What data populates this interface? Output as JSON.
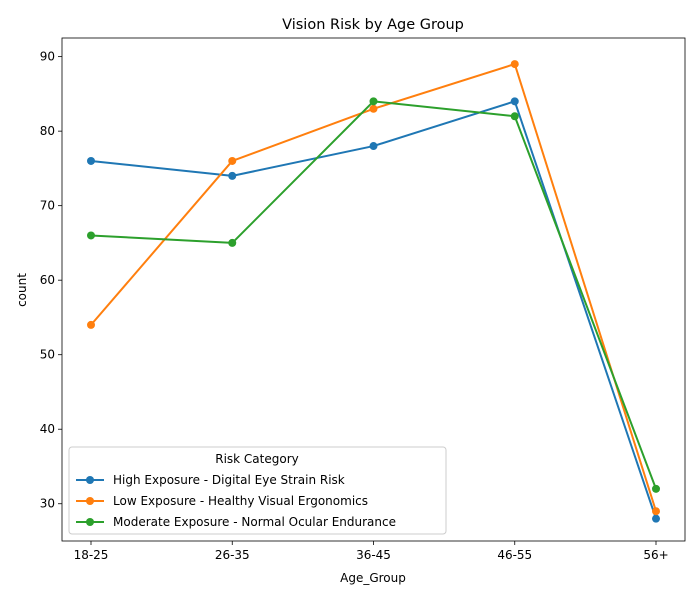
{
  "chart_data": {
    "type": "line",
    "title": "Vision Risk by Age Group",
    "xlabel": "Age_Group",
    "ylabel": "count",
    "categories": [
      "18-25",
      "26-35",
      "36-45",
      "46-55",
      "56+"
    ],
    "yticks": [
      30,
      40,
      50,
      60,
      70,
      80,
      90
    ],
    "ylim": [
      25,
      92.5
    ],
    "grid": false,
    "legend": {
      "title": "Risk Category",
      "position": "lower-left"
    },
    "series": [
      {
        "name": "High Exposure - Digital Eye Strain Risk",
        "color": "#1f77b4",
        "values": [
          76,
          74,
          78,
          84,
          28
        ]
      },
      {
        "name": "Low Exposure - Healthy Visual Ergonomics",
        "color": "#ff7f0e",
        "values": [
          54,
          76,
          83,
          89,
          29
        ]
      },
      {
        "name": "Moderate Exposure - Normal Ocular Endurance",
        "color": "#2ca02c",
        "values": [
          66,
          65,
          84,
          82,
          32
        ]
      }
    ]
  }
}
